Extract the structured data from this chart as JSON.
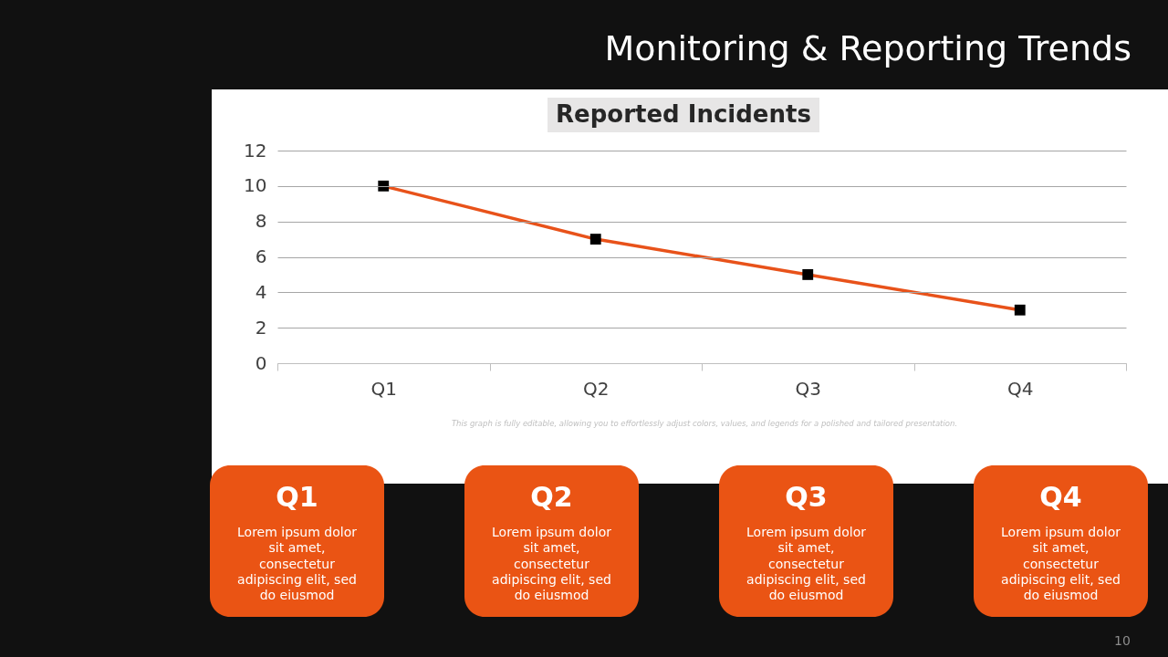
{
  "chart_data": {
    "type": "line",
    "title": "Reported Incidents",
    "categories": [
      "Q1",
      "Q2",
      "Q3",
      "Q4"
    ],
    "series": [
      {
        "color": "#e8521a",
        "values": [
          10,
          7,
          5,
          3
        ]
      }
    ],
    "ylim": [
      0,
      12
    ],
    "yticks": [
      0,
      2,
      4,
      6,
      8,
      10,
      12
    ],
    "grid": "y",
    "marker": "square",
    "line_style": "solid",
    "annotations": [
      "Monitoring & Reporting Trends",
      "This graph is fully editable, allowing you to effortlessly adjust colors, values, and legends for a polished and tailored presentation.",
      "10",
      "Q1",
      "Lorem ipsum dolor sit amet, consectetur adipiscing elit, sed do eiusmod",
      "Q2",
      "Lorem ipsum dolor sit amet, consectetur adipiscing elit, sed do eiusmod",
      "Q3",
      "Lorem ipsum dolor sit amet, consectetur adipiscing elit, sed do eiusmod",
      "Q4",
      "Lorem ipsum dolor sit amet, consectetur adipiscing elit, sed do eiusmod"
    ]
  }
}
